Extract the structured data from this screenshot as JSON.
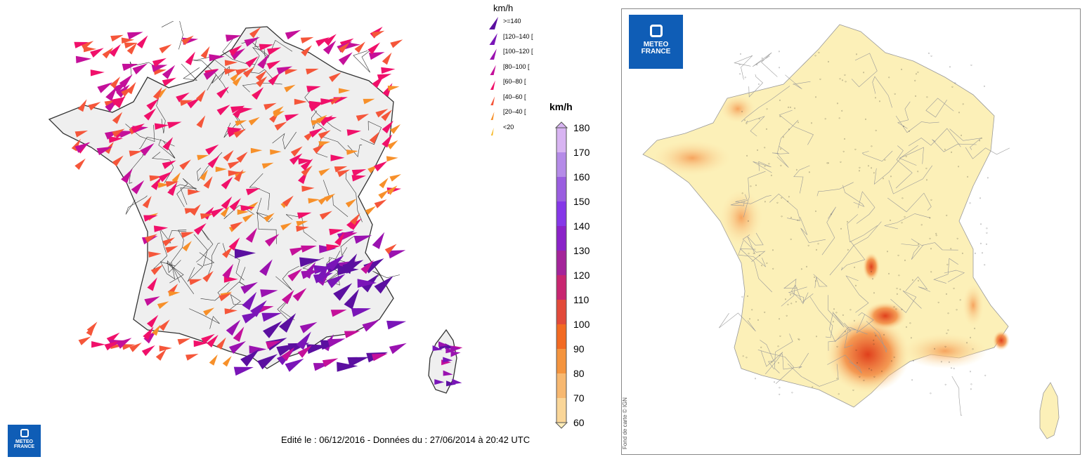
{
  "legend": {
    "title": "km/h",
    "classes": [
      {
        "label": ">=140",
        "color": "#5b0fa0",
        "size": 1.0
      },
      {
        "label": "[120–140 [",
        "color": "#7a15b8",
        "size": 0.88
      },
      {
        "label": "[100–120 [",
        "color": "#9a12b0",
        "size": 0.76
      },
      {
        "label": "[80–100 [",
        "color": "#c4109a",
        "size": 0.64
      },
      {
        "label": "[60–80 [",
        "color": "#f0106a",
        "size": 0.54
      },
      {
        "label": "[40–60 [",
        "color": "#f5563a",
        "size": 0.46
      },
      {
        "label": "[20–40 [",
        "color": "#f7902a",
        "size": 0.38
      },
      {
        "label": "<20",
        "color": "#f6b824",
        "size": 0.3
      }
    ]
  },
  "scale": {
    "title": "km/h",
    "ticks": [
      "180",
      "170",
      "160",
      "150",
      "140",
      "130",
      "120",
      "110",
      "100",
      "90",
      "80",
      "70",
      "60"
    ],
    "colors": [
      "#d8b4f2",
      "#b58be8",
      "#9a5ee0",
      "#8537e8",
      "#8a22c8",
      "#a4249a",
      "#c82670",
      "#e24a3a",
      "#f26a22",
      "#f4943e",
      "#f7b870",
      "#fad698",
      "#fdecb8"
    ]
  },
  "caption": "Edité le : 06/12/2016 - Données du : 27/06/2014 à 20:42 UTC",
  "logo": {
    "line1": "METEO",
    "line2": "FRANCE"
  },
  "credit": "Fond de carte © IGN"
}
